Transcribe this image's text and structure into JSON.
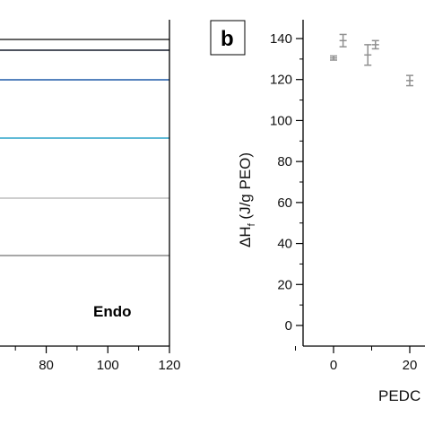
{
  "chart_data": [
    {
      "type": "line",
      "xlabel": "",
      "ylabel": "",
      "x_ticks": [
        "80",
        "100",
        "120"
      ],
      "xlim": [
        65,
        120
      ],
      "annotation": "Endo",
      "series": [
        {
          "color": "#303030",
          "x": [
            65,
            120
          ],
          "y": [
            44,
            44
          ]
        },
        {
          "color": "#141a2a",
          "x": [
            65,
            120
          ],
          "y": [
            56,
            56
          ]
        },
        {
          "color": "#1f5aa8",
          "x": [
            65,
            120
          ],
          "y": [
            89,
            89
          ]
        },
        {
          "color": "#2aa3c8",
          "x": [
            65,
            120
          ],
          "y": [
            154,
            154
          ]
        },
        {
          "color": "#bdbdbd",
          "x": [
            65,
            120
          ],
          "y": [
            221,
            221
          ]
        },
        {
          "color": "#8a8a8a",
          "x": [
            65,
            120
          ],
          "y": [
            285,
            285
          ]
        }
      ]
    },
    {
      "type": "scatter",
      "panel_label": "b",
      "ylabel": "ΔHf  (J/g PEO)",
      "ylabel_main": "ΔH",
      "ylabel_sub": "f",
      "ylabel_rest": "  (J/g PEO)",
      "xlabel": "PEDC",
      "ylim": [
        -5,
        150
      ],
      "y_ticks": [
        "0",
        "20",
        "40",
        "60",
        "80",
        "100",
        "120",
        "140"
      ],
      "xlim": [
        -15,
        28
      ],
      "x_ticks": [
        "0",
        "20"
      ],
      "points": [
        {
          "x": 0,
          "y": 130.5,
          "err": 1
        },
        {
          "x": 2.5,
          "y": 139,
          "err": 3
        },
        {
          "x": 9,
          "y": 132,
          "err": 5
        },
        {
          "x": 11,
          "y": 137,
          "err": 2
        },
        {
          "x": 20,
          "y": 119.5,
          "err": 2.5
        }
      ],
      "marker_color": "#909090"
    }
  ]
}
